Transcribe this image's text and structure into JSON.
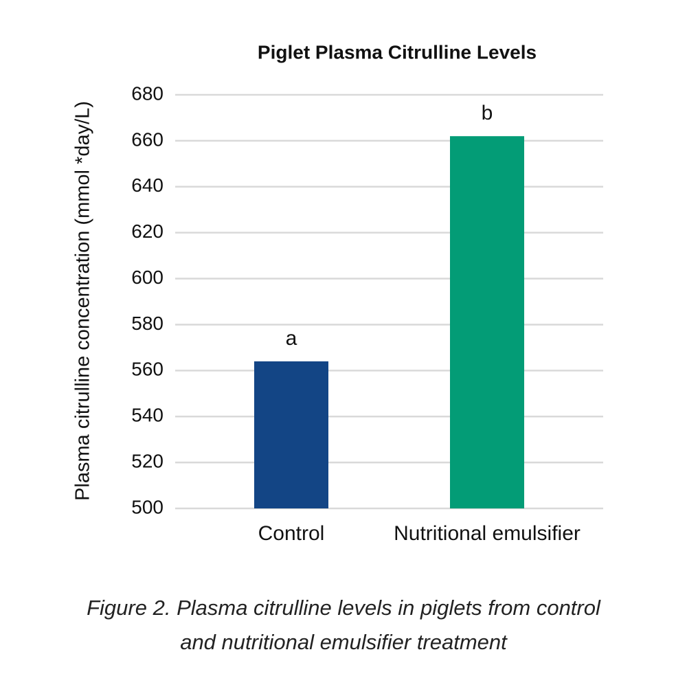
{
  "chart_data": {
    "type": "bar",
    "title": "Piglet Plasma Citrulline Levels",
    "y_label": "Plasma citrulline concentration (mmol *day/L)",
    "categories": [
      "Control",
      "Nutritional emulsifier"
    ],
    "values": [
      564,
      662
    ],
    "colors": [
      "#134585",
      "#039c76"
    ],
    "annotations": [
      "a",
      "b"
    ],
    "ylim": [
      500,
      680
    ],
    "yticks": [
      500,
      520,
      540,
      560,
      580,
      600,
      620,
      640,
      660,
      680
    ],
    "grid": true
  },
  "caption": {
    "label": "Figure 2.",
    "text": "Plasma citrulline levels in piglets from control and nutritional emulsifier treatment"
  }
}
